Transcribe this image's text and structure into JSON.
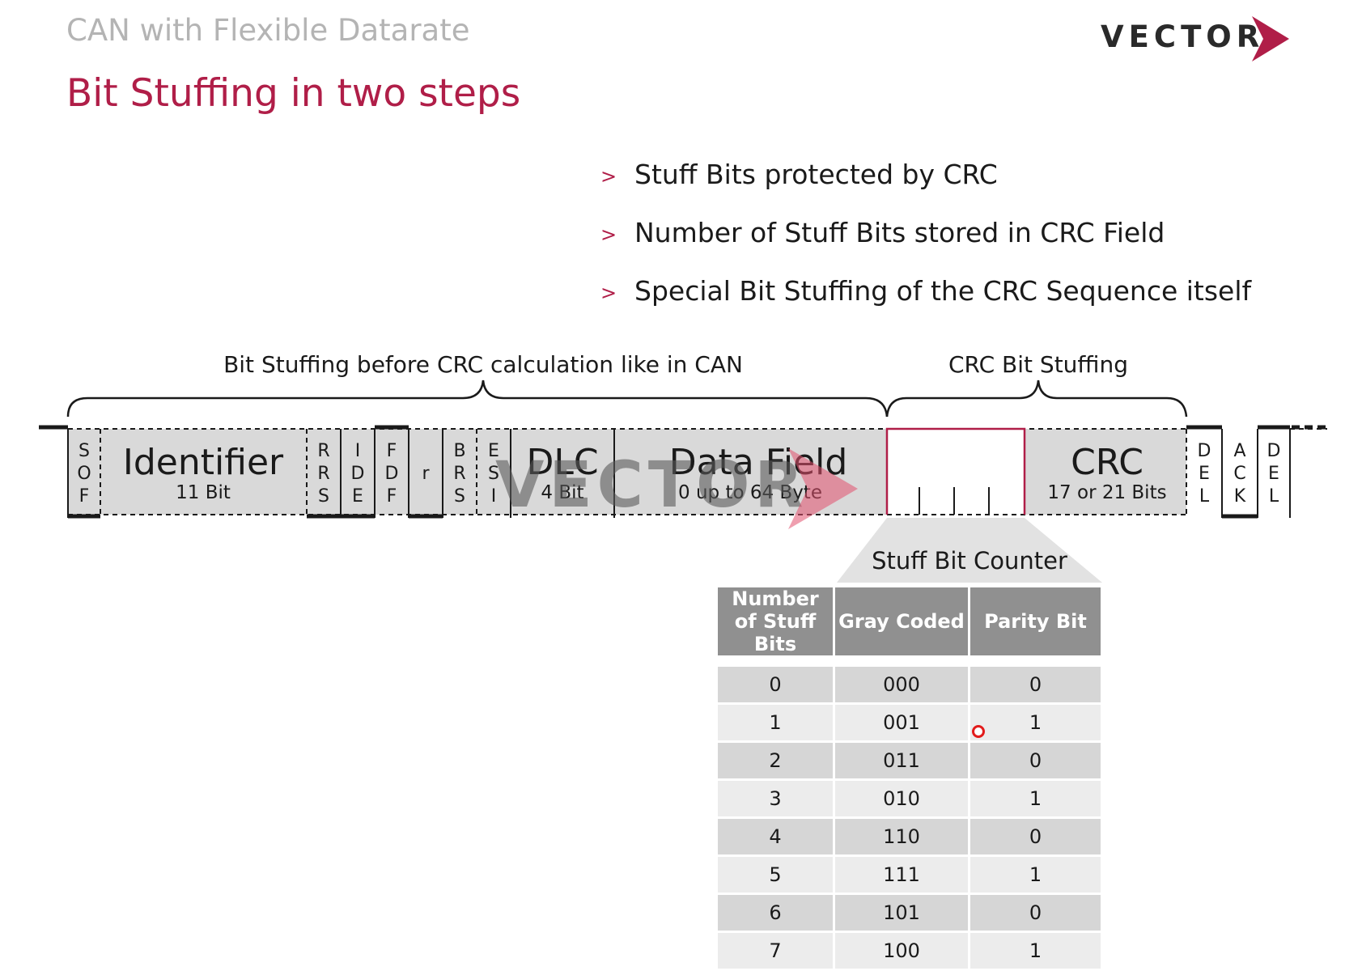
{
  "header": {
    "supertitle": "CAN with Flexible Datarate",
    "title": "Bit Stuffing in two steps",
    "logo": "VECTOR"
  },
  "bullets": [
    "Stuff Bits protected by CRC",
    "Number of Stuff Bits stored in CRC Field",
    "Special Bit Stuffing of the CRC Sequence itself"
  ],
  "brackets": {
    "left": "Bit Stuffing before CRC calculation like in CAN",
    "right": "CRC Bit Stuffing"
  },
  "frame": {
    "sof": [
      "S",
      "O",
      "F"
    ],
    "identifier": {
      "name": "Identifier",
      "size": "11 Bit"
    },
    "rrs": [
      "R",
      "R",
      "S"
    ],
    "ide": [
      "I",
      "D",
      "E"
    ],
    "fdf": [
      "F",
      "D",
      "F"
    ],
    "r": "r",
    "brs": [
      "B",
      "R",
      "S"
    ],
    "esi": [
      "E",
      "S",
      "I"
    ],
    "dlc": {
      "name": "DLC",
      "size": "4 Bit"
    },
    "data": {
      "name": "Data Field",
      "size": "0 up to 64 Byte"
    },
    "crc": {
      "name": "CRC",
      "size": "17 or 21 Bits"
    },
    "del1": [
      "D",
      "E",
      "L"
    ],
    "ack": [
      "A",
      "C",
      "K"
    ],
    "del2": [
      "D",
      "E",
      "L"
    ]
  },
  "counter_title": "Stuff Bit Counter",
  "table": {
    "headers": [
      "Number of Stuff Bits",
      "Gray Coded",
      "Parity Bit"
    ],
    "rows": [
      [
        "0",
        "000",
        "0"
      ],
      [
        "1",
        "001",
        "1"
      ],
      [
        "2",
        "011",
        "0"
      ],
      [
        "3",
        "010",
        "1"
      ],
      [
        "4",
        "110",
        "0"
      ],
      [
        "5",
        "111",
        "1"
      ],
      [
        "6",
        "101",
        "0"
      ],
      [
        "7",
        "100",
        "1"
      ]
    ]
  },
  "watermark": "VECTOR",
  "colors": {
    "accent": "#b01e48",
    "field_fill": "#d9d9d9",
    "header_fill": "#909090"
  }
}
